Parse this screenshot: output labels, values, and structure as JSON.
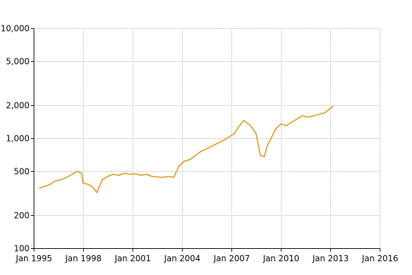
{
  "chart_data": {
    "type": "line",
    "title": "",
    "xlabel": "",
    "ylabel": "",
    "y_scale": "log",
    "ylim": [
      100,
      10000
    ],
    "xlim": [
      "1995-01",
      "2016-01"
    ],
    "grid": true,
    "legend": "none",
    "line_color": "#e0900a",
    "x_ticks": [
      {
        "value": "1995-01",
        "label": "Jan 1995"
      },
      {
        "value": "1998-01",
        "label": "Jan 1998"
      },
      {
        "value": "2001-01",
        "label": "Jan 2001"
      },
      {
        "value": "2004-01",
        "label": "Jan 2004"
      },
      {
        "value": "2007-01",
        "label": "Jan 2007"
      },
      {
        "value": "2010-01",
        "label": "Jan 2010"
      },
      {
        "value": "2013-01",
        "label": "Jan 2013"
      },
      {
        "value": "2016-01",
        "label": "Jan 2016"
      }
    ],
    "y_ticks": [
      {
        "value": 100,
        "label": "100"
      },
      {
        "value": 200,
        "label": "200"
      },
      {
        "value": 500,
        "label": "500"
      },
      {
        "value": 1000,
        "label": "1,000"
      },
      {
        "value": 2000,
        "label": "2,000"
      },
      {
        "value": 5000,
        "label": "5,000"
      },
      {
        "value": 10000,
        "label": "10,000"
      }
    ],
    "series": [
      {
        "x": [
          "1995-05",
          "1995-09",
          "1996-01",
          "1996-05",
          "1996-09",
          "1997-01",
          "1997-05",
          "1997-09",
          "1997-12",
          "1998-01",
          "1998-05",
          "1998-08",
          "1998-11",
          "1999-03",
          "1999-07",
          "1999-11",
          "2000-03",
          "2000-07",
          "2000-11",
          "2001-03",
          "2001-07",
          "2001-11",
          "2002-03",
          "2002-07",
          "2002-11",
          "2003-03",
          "2003-07",
          "2003-11",
          "2004-03",
          "2004-07",
          "2004-11",
          "2005-03",
          "2005-07",
          "2005-11",
          "2006-03",
          "2006-07",
          "2006-11",
          "2007-03",
          "2007-07",
          "2007-10",
          "2008-03",
          "2008-07",
          "2008-10",
          "2009-01",
          "2009-03",
          "2009-06",
          "2009-09",
          "2010-01",
          "2010-05",
          "2010-09",
          "2011-01",
          "2011-05",
          "2011-09",
          "2012-01",
          "2012-05",
          "2012-09",
          "2013-03"
        ],
        "values": [
          350,
          365,
          380,
          410,
          420,
          440,
          470,
          500,
          480,
          390,
          380,
          360,
          320,
          420,
          450,
          470,
          460,
          480,
          470,
          475,
          460,
          470,
          450,
          445,
          440,
          450,
          440,
          560,
          620,
          640,
          700,
          760,
          800,
          850,
          900,
          950,
          1020,
          1100,
          1300,
          1450,
          1300,
          1100,
          700,
          680,
          850,
          1000,
          1200,
          1350,
          1300,
          1400,
          1500,
          1600,
          1550,
          1600,
          1650,
          1700,
          1950
        ]
      }
    ]
  }
}
